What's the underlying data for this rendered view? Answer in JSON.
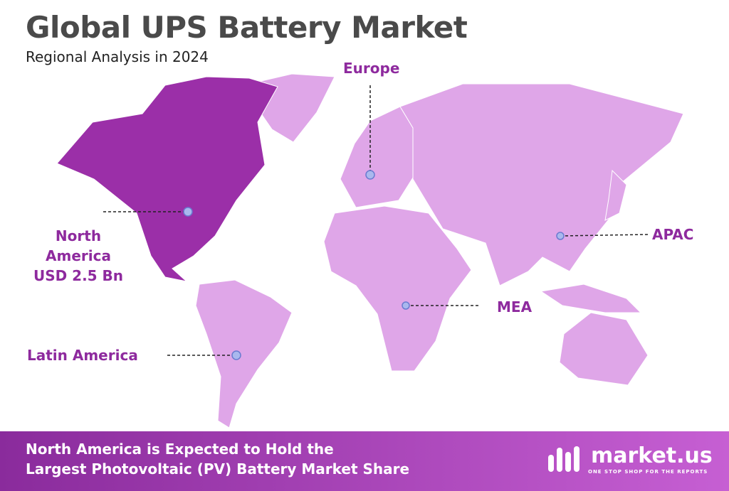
{
  "header": {
    "title": "Global UPS Battery Market",
    "subtitle": "Regional Analysis in 2024"
  },
  "regions": [
    {
      "name": "Europe"
    },
    {
      "name": "North America",
      "value": "USD 2.5 Bn"
    },
    {
      "name": "APAC"
    },
    {
      "name": "MEA"
    },
    {
      "name": "Latin America"
    }
  ],
  "footer": {
    "lines": [
      "North America is Expected to Hold the",
      "Largest Photovoltaic (PV) Battery Market Share"
    ]
  },
  "logo": {
    "name": "market.us",
    "tagline": "ONE STOP SHOP FOR THE REPORTS"
  }
}
